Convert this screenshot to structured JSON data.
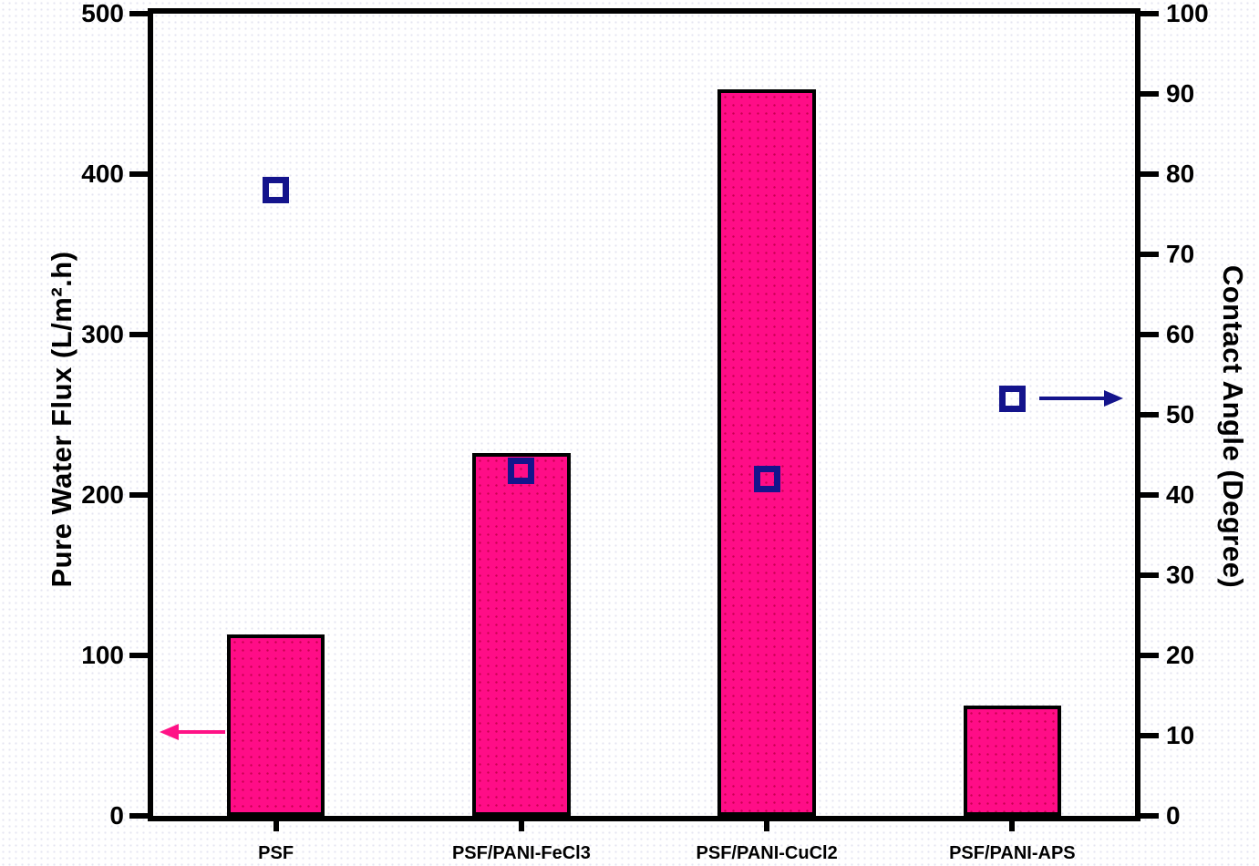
{
  "chart_data": {
    "type": "bar",
    "title": "",
    "categories": [
      "PSF",
      "PSF/PANI-FeCl3",
      "PSF/PANI-CuCl2",
      "PSF/PANI-APS"
    ],
    "series": [
      {
        "name": "Pure Water Flux",
        "type": "bar",
        "axis": "left",
        "values": [
          113,
          226,
          453,
          69
        ],
        "fill_color": "#FF0D87",
        "dot_color": "#C80050",
        "border_color": "#000000"
      },
      {
        "name": "Contact Angle",
        "type": "scatter-open-square",
        "axis": "right",
        "values": [
          78,
          43,
          42,
          52
        ],
        "marker_color": "#14148C"
      }
    ],
    "left_axis": {
      "label": "Pure Water Flux (L/m².h)",
      "min": 0,
      "max": 500,
      "tick_values": [
        0,
        100,
        200,
        300,
        400,
        500
      ],
      "tick_labels": [
        "0",
        "100",
        "200",
        "300",
        "400",
        "500"
      ]
    },
    "right_axis": {
      "label": "Contact Angle (Degree)",
      "min": 0,
      "max": 100,
      "tick_values": [
        0,
        10,
        20,
        30,
        40,
        50,
        60,
        70,
        80,
        90,
        100
      ],
      "tick_labels": [
        "0",
        "10",
        "20",
        "30",
        "40",
        "50",
        "60",
        "70",
        "80",
        "90",
        "100"
      ]
    },
    "annotations": [
      {
        "id": "flux-arrow",
        "type": "arrow",
        "direction": "left",
        "axis": "left",
        "value": 52,
        "color": "#FF1286"
      },
      {
        "id": "angle-arrow",
        "type": "arrow",
        "direction": "right",
        "axis": "right",
        "value": 52,
        "color": "#14148C"
      }
    ],
    "grid": false,
    "legend": "none",
    "frame": "full-box"
  }
}
